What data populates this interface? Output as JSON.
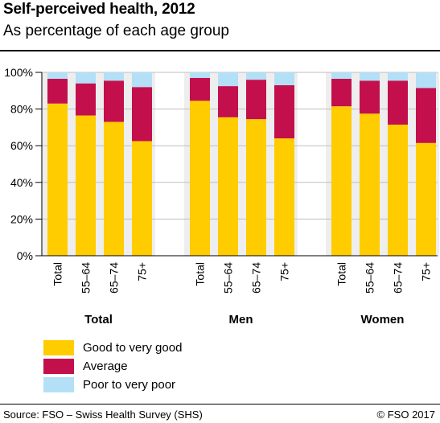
{
  "title": "Self-perceived health, 2012",
  "subtitle": "As percentage of each age group",
  "source": "Source: FSO – Swiss Health Survey (SHS)",
  "copyright": "© FSO 2017",
  "colors": {
    "good": "#ffcc00",
    "average": "#c3104d",
    "poor": "#b3e0f7",
    "panel_bg": "#eeeeee",
    "grid": "#bfbfbf"
  },
  "chart_data": {
    "type": "bar",
    "stacked": true,
    "groups": [
      "Total",
      "Men",
      "Women"
    ],
    "categories": [
      "Total",
      "55–64",
      "65–74",
      "75+"
    ],
    "yticks": [
      "0%",
      "20%",
      "40%",
      "60%",
      "80%",
      "100%"
    ],
    "ylim": [
      0,
      100
    ],
    "grid": true,
    "legend_position": "bottom-left",
    "series": [
      {
        "name": "Good to very good",
        "key": "good",
        "values": [
          [
            83,
            76.5,
            73,
            62.5
          ],
          [
            84.5,
            75.5,
            74.5,
            64
          ],
          [
            81.5,
            77.5,
            71.5,
            61.5
          ]
        ]
      },
      {
        "name": "Average",
        "key": "average",
        "values": [
          [
            13.5,
            17.5,
            22.5,
            29.5
          ],
          [
            12.5,
            17,
            21.5,
            29
          ],
          [
            15,
            18,
            24,
            30
          ]
        ]
      },
      {
        "name": "Poor to very poor",
        "key": "poor",
        "values": [
          [
            3.5,
            6,
            4.5,
            8
          ],
          [
            3,
            7.5,
            4,
            7
          ],
          [
            3.5,
            4.5,
            4.5,
            8.5
          ]
        ]
      }
    ]
  }
}
